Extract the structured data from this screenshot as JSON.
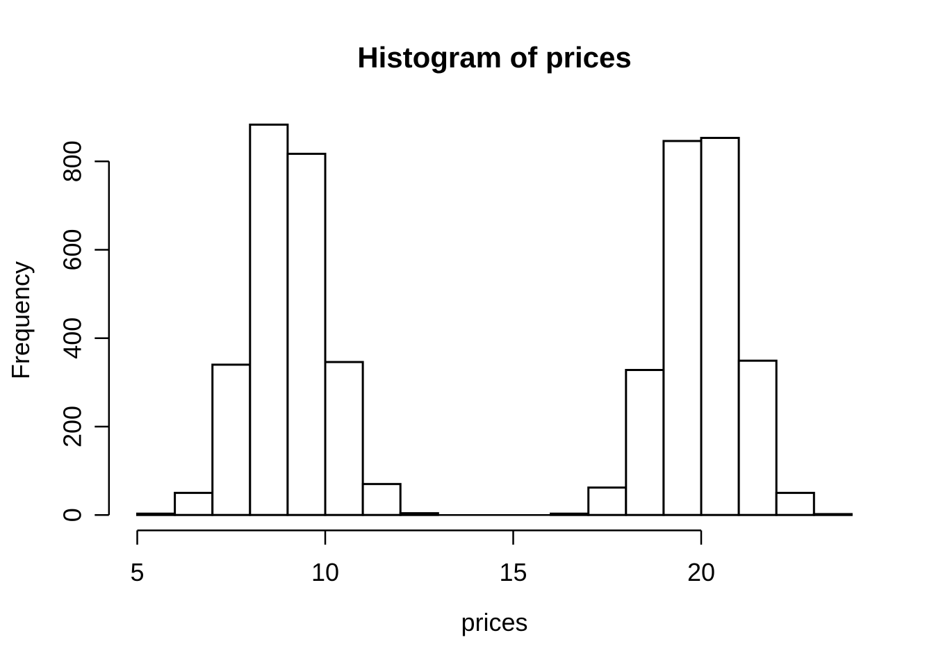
{
  "chart_data": {
    "type": "bar",
    "variant": "histogram",
    "title": "Histogram of prices",
    "xlabel": "prices",
    "ylabel": "Frequency",
    "bin_start": 5,
    "bin_width": 1,
    "bin_edges": [
      5,
      6,
      7,
      8,
      9,
      10,
      11,
      12,
      13,
      14,
      15,
      16,
      17,
      18,
      19,
      20,
      21,
      22,
      23,
      24
    ],
    "counts": [
      3,
      50,
      340,
      883,
      817,
      346,
      70,
      4,
      0,
      0,
      0,
      3,
      62,
      328,
      846,
      853,
      349,
      50,
      2
    ],
    "x_ticks": [
      5,
      10,
      15,
      20
    ],
    "y_ticks": [
      0,
      200,
      400,
      600,
      800
    ],
    "xlim": [
      5,
      24
    ],
    "ylim": [
      0,
      900
    ],
    "grid": false,
    "legend_position": "none",
    "colors": {
      "background": "#ffffff",
      "bar_fill": "#ffffff",
      "bar_stroke": "#000000",
      "axis": "#000000",
      "text": "#000000"
    }
  }
}
